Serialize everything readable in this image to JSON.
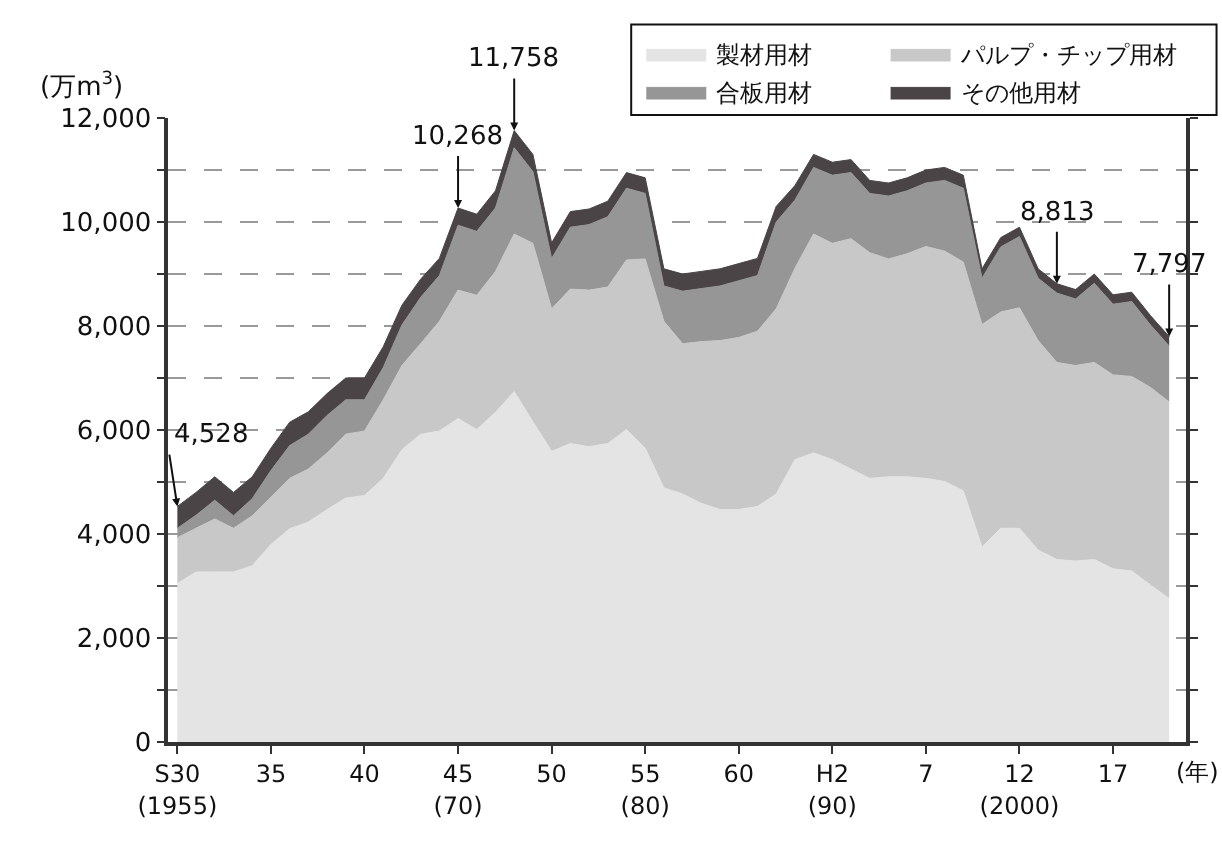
{
  "chart_data": {
    "type": "area",
    "stacked": true,
    "xlabel": "(年)",
    "ylabel": "(万m$^{3}$)",
    "categories": [
      "S30\n(1955)",
      null,
      null,
      null,
      null,
      "35",
      null,
      null,
      null,
      null,
      "40",
      null,
      null,
      null,
      null,
      "45\n(70)",
      null,
      null,
      null,
      null,
      "50",
      null,
      null,
      null,
      null,
      "55\n(80)",
      null,
      null,
      null,
      null,
      "60",
      null,
      null,
      null,
      null,
      "H2\n(90)",
      null,
      null,
      null,
      null,
      "7",
      null,
      null,
      null,
      null,
      "12\n(2000)",
      null,
      null,
      null,
      null,
      "17",
      null,
      null,
      null
    ],
    "series": [
      {
        "name": "製材用材",
        "color": "#e4e4e4",
        "values": [
          3050,
          3270,
          3270,
          3270,
          3390,
          3800,
          4100,
          4230,
          4470,
          4690,
          4740,
          5070,
          5620,
          5920,
          5980,
          6220,
          6010,
          6340,
          6740,
          6160,
          5590,
          5740,
          5680,
          5740,
          6010,
          5650,
          4890,
          4770,
          4590,
          4470,
          4470,
          4530,
          4770,
          5430,
          5560,
          5430,
          5250,
          5070,
          5100,
          5100,
          5070,
          5010,
          4830,
          3750,
          4110,
          4110,
          3690,
          3510,
          3480,
          3510,
          3330,
          3290,
          3020,
          2760
        ]
      },
      {
        "name": "パルプ・チップ用材",
        "color": "#c8c8c8",
        "values": [
          880,
          840,
          1020,
          840,
          960,
          910,
          970,
          1020,
          1090,
          1230,
          1240,
          1510,
          1620,
          1740,
          2110,
          2470,
          2580,
          2710,
          3030,
          3430,
          2740,
          2970,
          3010,
          3010,
          3260,
          3640,
          3200,
          2890,
          3110,
          3250,
          3310,
          3370,
          3560,
          3680,
          4210,
          4160,
          4430,
          4340,
          4190,
          4290,
          4460,
          4430,
          4400,
          4280,
          4160,
          4240,
          4030,
          3790,
          3760,
          3790,
          3730,
          3740,
          3800,
          3780
        ]
      },
      {
        "name": "合板用材",
        "color": "#969696",
        "values": [
          180,
          250,
          360,
          240,
          330,
          510,
          630,
          670,
          720,
          660,
          600,
          620,
          780,
          890,
          880,
          1248,
          1230,
          1220,
          1658,
          1380,
          970,
          1190,
          1260,
          1350,
          1380,
          1260,
          680,
          1010,
          1020,
          1050,
          1090,
          1070,
          1670,
          1310,
          1280,
          1310,
          1270,
          1140,
          1210,
          1210,
          1220,
          1360,
          1420,
          890,
          1250,
          1370,
          1200,
          1333,
          1280,
          1520,
          1360,
          1440,
          1200,
          1077
        ]
      },
      {
        "name": "その他用材",
        "color": "#4a4446",
        "values": [
          420,
          440,
          450,
          450,
          420,
          430,
          450,
          430,
          420,
          420,
          420,
          400,
          380,
          350,
          330,
          330,
          330,
          330,
          330,
          330,
          300,
          300,
          300,
          300,
          300,
          300,
          330,
          330,
          330,
          330,
          330,
          330,
          300,
          280,
          250,
          250,
          250,
          250,
          250,
          250,
          250,
          250,
          250,
          180,
          180,
          180,
          180,
          180,
          180,
          180,
          180,
          180,
          180,
          180
        ]
      }
    ],
    "ylim": [
      0,
      12000
    ],
    "yticks": [
      {
        "value": 0,
        "label": "0"
      },
      {
        "value": 1000,
        "label": null
      },
      {
        "value": 2000,
        "label": "2,000"
      },
      {
        "value": 3000,
        "label": null
      },
      {
        "value": 4000,
        "label": "4,000"
      },
      {
        "value": 5000,
        "label": null
      },
      {
        "value": 6000,
        "label": "6,000"
      },
      {
        "value": 7000,
        "label": null
      },
      {
        "value": 8000,
        "label": "8,000"
      },
      {
        "value": 9000,
        "label": null
      },
      {
        "value": 10000,
        "label": "10,000"
      },
      {
        "value": 11000,
        "label": null
      },
      {
        "value": 12000,
        "label": "12,000"
      }
    ],
    "grid": "y",
    "line_style": "dashed",
    "legend": "top right",
    "annotations": [
      {
        "text": "4,528",
        "x": "S30\n(1955)",
        "y": 4528
      },
      {
        "text": "10,268",
        "x": "45\n(70)",
        "y": 10268
      },
      {
        "text": "11,758",
        "y": 11758
      },
      {
        "text": "8,813",
        "y": 8813
      },
      {
        "text": "7,797",
        "y": 7797
      }
    ]
  }
}
